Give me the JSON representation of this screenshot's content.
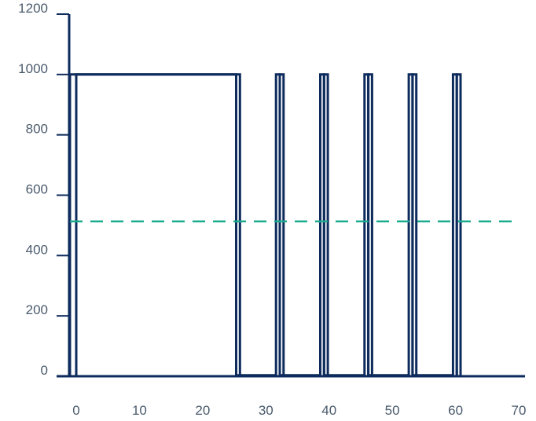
{
  "chart_data": {
    "type": "line",
    "xlim": [
      0,
      70
    ],
    "ylim": [
      0,
      1200
    ],
    "x_ticks": [
      "0",
      "10",
      "20",
      "30",
      "40",
      "50",
      "60",
      "70"
    ],
    "y_ticks": [
      "0",
      "200",
      "400",
      "600",
      "800",
      "1000",
      "1200"
    ],
    "grid": false,
    "legend": "none",
    "series": [
      {
        "style": "solid",
        "color": "#0d2b5c",
        "points": [
          [
            -1,
            0
          ],
          [
            -1,
            1000
          ],
          [
            25.9,
            1000
          ],
          [
            25.9,
            0
          ],
          [
            32.2,
            0
          ],
          [
            32.2,
            1000
          ],
          [
            32.8,
            1000
          ],
          [
            32.8,
            0
          ],
          [
            39.2,
            0
          ],
          [
            39.2,
            1000
          ],
          [
            39.8,
            1000
          ],
          [
            39.8,
            0
          ],
          [
            46.2,
            0
          ],
          [
            46.2,
            1000
          ],
          [
            46.8,
            1000
          ],
          [
            46.8,
            0
          ],
          [
            53.2,
            0
          ],
          [
            53.2,
            1000
          ],
          [
            53.8,
            1000
          ],
          [
            53.8,
            0
          ],
          [
            60.2,
            0
          ],
          [
            60.2,
            1000
          ],
          [
            60.8,
            1000
          ],
          [
            60.8,
            0
          ],
          [
            70,
            0
          ]
        ]
      },
      {
        "style": "solid",
        "color": "#0d2b5c",
        "points": [
          [
            0,
            0
          ],
          [
            0,
            1000
          ],
          [
            25.3,
            1000
          ],
          [
            25.3,
            3
          ],
          [
            31.6,
            3
          ],
          [
            31.6,
            1000
          ],
          [
            32.2,
            1000
          ],
          [
            32.2,
            3
          ],
          [
            38.6,
            3
          ],
          [
            38.6,
            1000
          ],
          [
            39.2,
            1000
          ],
          [
            39.2,
            3
          ],
          [
            45.6,
            3
          ],
          [
            45.6,
            1000
          ],
          [
            46.2,
            1000
          ],
          [
            46.2,
            3
          ],
          [
            52.6,
            3
          ],
          [
            52.6,
            1000
          ],
          [
            53.2,
            1000
          ],
          [
            53.2,
            3
          ],
          [
            59.6,
            3
          ],
          [
            59.6,
            1000
          ],
          [
            60.2,
            1000
          ],
          [
            60.2,
            0
          ]
        ]
      },
      {
        "style": "dashed",
        "color": "#1aaa8e",
        "points": [
          [
            -1,
            513
          ],
          [
            70,
            513
          ]
        ]
      }
    ]
  }
}
